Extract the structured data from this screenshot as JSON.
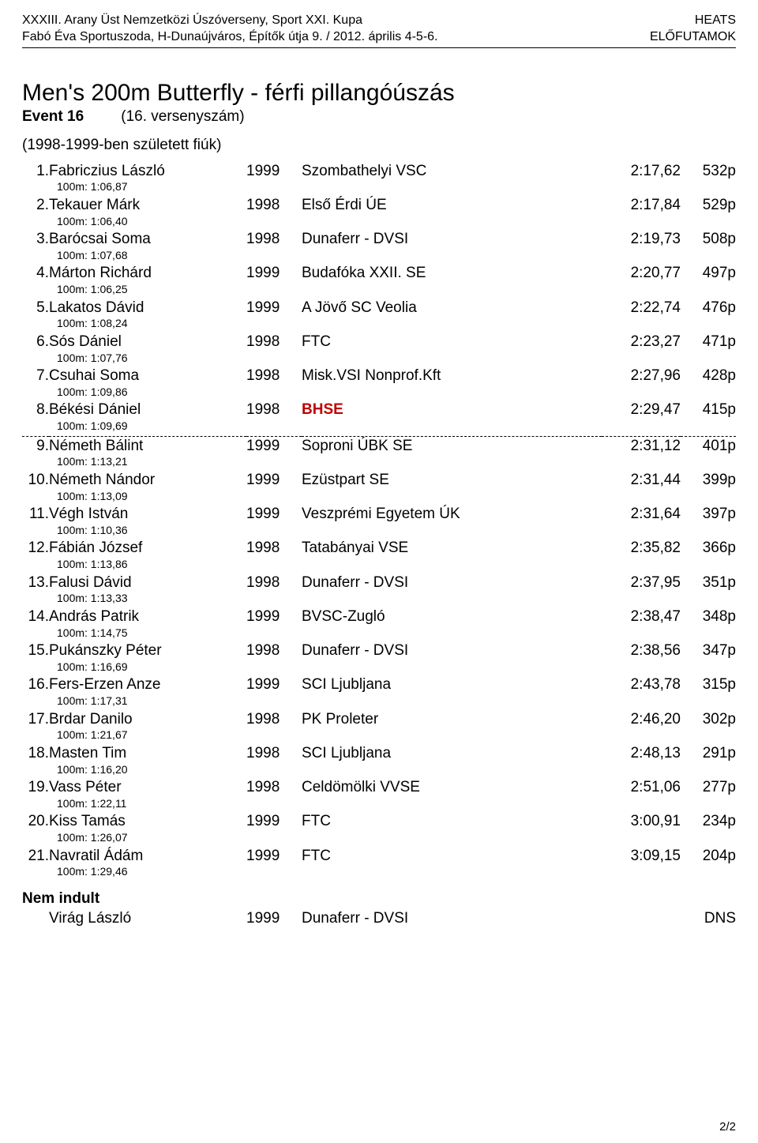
{
  "header": {
    "left1": "XXXIII. Arany Üst Nemzetközi Úszóverseny, Sport XXI. Kupa",
    "left2": "Fabó Éva Sportuszoda, H-Dunaújváros, Építők útja 9.  /   2012. április 4-5-6.",
    "right1": "HEATS",
    "right2": "ELŐFUTAMOK"
  },
  "event": {
    "title": "Men's 200m Butterfly - férfi pillangóúszás",
    "num_label": "Event 16",
    "num_paren": "(16. versenyszám)",
    "age_group": "(1998-1999-ben született fiúk)"
  },
  "cut_after_rank": 8,
  "results": [
    {
      "rank": "1.",
      "name": "Fabriczius László",
      "year": "1999",
      "club": "Szombathelyi VSC",
      "time": "2:17,62",
      "pts": "532p",
      "split": "100m:  1:06,87"
    },
    {
      "rank": "2.",
      "name": "Tekauer Márk",
      "year": "1998",
      "club": "Első Érdi ÚE",
      "time": "2:17,84",
      "pts": "529p",
      "split": "100m:  1:06,40"
    },
    {
      "rank": "3.",
      "name": "Barócsai Soma",
      "year": "1998",
      "club": "Dunaferr - DVSI",
      "time": "2:19,73",
      "pts": "508p",
      "split": "100m:  1:07,68"
    },
    {
      "rank": "4.",
      "name": "Márton Richárd",
      "year": "1999",
      "club": "Budafóka XXII. SE",
      "time": "2:20,77",
      "pts": "497p",
      "split": "100m:  1:06,25"
    },
    {
      "rank": "5.",
      "name": "Lakatos Dávid",
      "year": "1999",
      "club": "A Jövő SC Veolia",
      "time": "2:22,74",
      "pts": "476p",
      "split": "100m:  1:08,24"
    },
    {
      "rank": "6.",
      "name": "Sós Dániel",
      "year": "1998",
      "club": "FTC",
      "time": "2:23,27",
      "pts": "471p",
      "split": "100m:  1:07,76"
    },
    {
      "rank": "7.",
      "name": "Csuhai Soma",
      "year": "1998",
      "club": "Misk.VSI Nonprof.Kft",
      "time": "2:27,96",
      "pts": "428p",
      "split": "100m:  1:09,86"
    },
    {
      "rank": "8.",
      "name": "Békési Dániel",
      "year": "1998",
      "club": "BHSE",
      "time": "2:29,47",
      "pts": "415p",
      "split": "100m:  1:09,69",
      "club_highlight": true
    },
    {
      "rank": "9.",
      "name": "Németh Bálint",
      "year": "1999",
      "club": "Soproni ÚBK SE",
      "time": "2:31,12",
      "pts": "401p",
      "split": "100m:  1:13,21"
    },
    {
      "rank": "10.",
      "name": "Németh Nándor",
      "year": "1999",
      "club": "Ezüstpart SE",
      "time": "2:31,44",
      "pts": "399p",
      "split": "100m:  1:13,09"
    },
    {
      "rank": "11.",
      "name": "Végh István",
      "year": "1999",
      "club": "Veszprémi Egyetem ÚK",
      "time": "2:31,64",
      "pts": "397p",
      "split": "100m:  1:10,36"
    },
    {
      "rank": "12.",
      "name": "Fábián József",
      "year": "1998",
      "club": "Tatabányai VSE",
      "time": "2:35,82",
      "pts": "366p",
      "split": "100m:  1:13,86"
    },
    {
      "rank": "13.",
      "name": "Falusi Dávid",
      "year": "1998",
      "club": "Dunaferr - DVSI",
      "time": "2:37,95",
      "pts": "351p",
      "split": "100m:  1:13,33"
    },
    {
      "rank": "14.",
      "name": "András Patrik",
      "year": "1999",
      "club": "BVSC-Zugló",
      "time": "2:38,47",
      "pts": "348p",
      "split": "100m:  1:14,75"
    },
    {
      "rank": "15.",
      "name": "Pukánszky Péter",
      "year": "1998",
      "club": "Dunaferr - DVSI",
      "time": "2:38,56",
      "pts": "347p",
      "split": "100m:  1:16,69"
    },
    {
      "rank": "16.",
      "name": "Fers-Erzen Anze",
      "year": "1999",
      "club": "SCI Ljubljana",
      "time": "2:43,78",
      "pts": "315p",
      "split": "100m:  1:17,31"
    },
    {
      "rank": "17.",
      "name": "Brdar Danilo",
      "year": "1998",
      "club": "PK Proleter",
      "time": "2:46,20",
      "pts": "302p",
      "split": "100m:  1:21,67"
    },
    {
      "rank": "18.",
      "name": "Masten Tim",
      "year": "1998",
      "club": "SCI Ljubljana",
      "time": "2:48,13",
      "pts": "291p",
      "split": "100m:  1:16,20"
    },
    {
      "rank": "19.",
      "name": "Vass Péter",
      "year": "1998",
      "club": "Celdömölki VVSE",
      "time": "2:51,06",
      "pts": "277p",
      "split": "100m:  1:22,11"
    },
    {
      "rank": "20.",
      "name": "Kiss Tamás",
      "year": "1999",
      "club": "FTC",
      "time": "3:00,91",
      "pts": "234p",
      "split": "100m:  1:26,07"
    },
    {
      "rank": "21.",
      "name": "Navratil Ádám",
      "year": "1999",
      "club": "FTC",
      "time": "3:09,15",
      "pts": "204p",
      "split": "100m:  1:29,46"
    }
  ],
  "dns": {
    "title": "Nem indult",
    "rows": [
      {
        "name": "Virág László",
        "year": "1999",
        "club": "Dunaferr - DVSI",
        "status": "DNS"
      }
    ]
  },
  "footer": "2/2"
}
